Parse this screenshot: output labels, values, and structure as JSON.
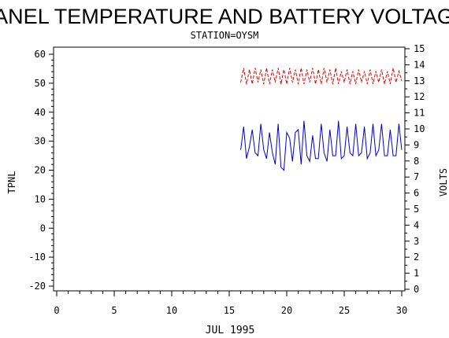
{
  "chart_data": {
    "type": "line",
    "title": "PANEL TEMPERATURE AND BATTERY VOLTAGE",
    "subtitle": "STATION=OYSM",
    "xlabel": "JUL 1995",
    "ylabel_left": "TPNL",
    "ylabel_right": "VOLTS",
    "xlim": [
      0,
      30
    ],
    "ylim_left": [
      -20,
      60
    ],
    "ylim_right": [
      0,
      15
    ],
    "x_ticks": [
      "0",
      "5",
      "10",
      "15",
      "20",
      "25",
      "30"
    ],
    "y_left_ticks": [
      "-20",
      "-10",
      "0",
      "10",
      "20",
      "30",
      "40",
      "50",
      "60"
    ],
    "y_right_ticks": [
      "0",
      "1",
      "2",
      "3",
      "4",
      "5",
      "6",
      "7",
      "8",
      "9",
      "10",
      "11",
      "12",
      "13",
      "14",
      "15"
    ],
    "series": [
      {
        "axis": "left",
        "color": "#0000cc",
        "style": "solid",
        "x": [
          16.0,
          16.25,
          16.5,
          16.75,
          17.0,
          17.25,
          17.5,
          17.75,
          18.0,
          18.25,
          18.5,
          18.75,
          19.0,
          19.25,
          19.5,
          19.75,
          20.0,
          20.25,
          20.5,
          20.75,
          21.0,
          21.25,
          21.5,
          21.75,
          22.0,
          22.25,
          22.5,
          22.75,
          23.0,
          23.25,
          23.5,
          23.75,
          24.0,
          24.25,
          24.5,
          24.75,
          25.0,
          25.25,
          25.5,
          25.75,
          26.0,
          26.25,
          26.5,
          26.75,
          27.0,
          27.25,
          27.5,
          27.75,
          28.0,
          28.25,
          28.5,
          28.75,
          29.0,
          29.25,
          29.5,
          29.75,
          30.0
        ],
        "y": [
          27,
          35,
          24,
          28,
          34,
          26,
          25,
          36,
          27,
          24,
          33,
          26,
          22,
          36,
          21,
          20,
          33,
          31,
          23,
          33,
          34,
          22,
          37,
          25,
          23,
          32,
          24,
          24,
          36,
          26,
          23,
          34,
          25,
          25,
          37,
          24,
          25,
          35,
          26,
          25,
          36,
          25,
          26,
          35,
          24,
          26,
          36,
          25,
          27,
          36,
          25,
          25,
          34,
          25,
          25,
          36,
          27
        ]
      },
      {
        "axis": "right",
        "color": "#dd0000",
        "style": "dashed",
        "x": [
          16.0,
          16.25,
          16.5,
          16.75,
          17.0,
          17.25,
          17.5,
          17.75,
          18.0,
          18.25,
          18.5,
          18.75,
          19.0,
          19.25,
          19.5,
          19.75,
          20.0,
          20.25,
          20.5,
          20.75,
          21.0,
          21.25,
          21.5,
          21.75,
          22.0,
          22.25,
          22.5,
          22.75,
          23.0,
          23.25,
          23.5,
          23.75,
          24.0,
          24.25,
          24.5,
          24.75,
          25.0,
          25.25,
          25.5,
          25.75,
          26.0,
          26.25,
          26.5,
          26.75,
          27.0,
          27.25,
          27.5,
          27.75,
          28.0,
          28.25,
          28.5,
          28.75,
          29.0,
          29.25,
          29.5,
          29.75,
          30.0
        ],
        "y": [
          12.9,
          13.8,
          12.8,
          13.7,
          12.8,
          13.8,
          12.9,
          13.7,
          12.8,
          13.8,
          12.8,
          13.7,
          12.9,
          13.8,
          12.8,
          13.7,
          12.8,
          13.8,
          12.9,
          13.7,
          12.8,
          13.8,
          12.8,
          13.7,
          12.9,
          13.8,
          12.8,
          13.7,
          12.8,
          13.8,
          12.9,
          13.7,
          12.8,
          13.8,
          12.8,
          13.6,
          12.9,
          13.7,
          12.8,
          13.6,
          12.8,
          13.7,
          12.9,
          13.6,
          12.8,
          13.7,
          12.8,
          13.6,
          12.9,
          13.7,
          12.8,
          13.6,
          12.8,
          13.8,
          12.9,
          13.6,
          13.0
        ]
      }
    ]
  }
}
